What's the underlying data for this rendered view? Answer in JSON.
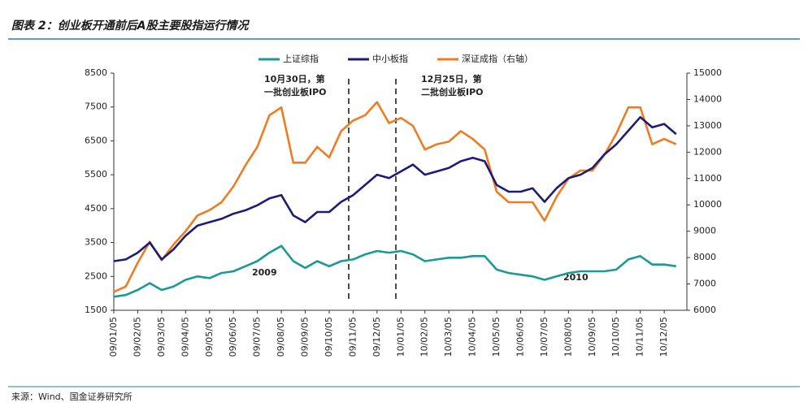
{
  "chart_data": {
    "type": "line",
    "title": "图表 2：创业板开通前后A股主要股指运行情况",
    "source": "来源：Wind、国金证券研究所",
    "categories": [
      "09/01/05",
      null,
      "09/02/05",
      null,
      "09/03/05",
      null,
      "09/04/05",
      null,
      "09/05/05",
      null,
      "09/06/05",
      null,
      "09/07/05",
      null,
      "09/08/05",
      null,
      "09/09/05",
      null,
      "09/10/05",
      null,
      "09/11/05",
      null,
      "09/12/05",
      null,
      "10/01/05",
      null,
      "10/02/05",
      null,
      "10/03/05",
      null,
      "10/04/05",
      null,
      "10/05/05",
      null,
      "10/06/05",
      null,
      "10/07/05",
      null,
      "10/08/05",
      null,
      "10/09/05",
      null,
      "10/10/05",
      null,
      "10/11/05",
      null,
      "10/12/05",
      null
    ],
    "series": [
      {
        "name": "上证综指",
        "color": "#1a9a94",
        "values": [
          1900,
          1950,
          2100,
          2300,
          2100,
          2200,
          2400,
          2500,
          2450,
          2600,
          2650,
          2800,
          2950,
          3200,
          3400,
          2950,
          2750,
          2950,
          2800,
          2950,
          3000,
          3150,
          3250,
          3200,
          3250,
          3150,
          2950,
          3000,
          3050,
          3050,
          3100,
          3100,
          2700,
          2600,
          2550,
          2500,
          2400,
          2500,
          2600,
          2650,
          2650,
          2650,
          2700,
          3000,
          3100,
          2850,
          2850,
          2800
        ]
      },
      {
        "name": "中小板指",
        "color": "#1c1c78",
        "values": [
          2950,
          3000,
          3200,
          3500,
          3000,
          3300,
          3700,
          4000,
          4100,
          4200,
          4350,
          4450,
          4600,
          4800,
          4900,
          4300,
          4100,
          4400,
          4400,
          4700,
          4900,
          5200,
          5500,
          5400,
          5600,
          5800,
          5500,
          5600,
          5700,
          5900,
          6000,
          5900,
          5200,
          5000,
          5000,
          5100,
          4700,
          5100,
          5400,
          5500,
          5700,
          6100,
          6400,
          6800,
          7200,
          6900,
          7000,
          6700
        ]
      },
      {
        "name": "深证成指（右轴）",
        "color": "#f07c22",
        "axis": "y2",
        "values": [
          6700,
          6900,
          7800,
          8600,
          7900,
          8500,
          9000,
          9600,
          9800,
          10100,
          10700,
          11500,
          12200,
          13400,
          13700,
          11600,
          11600,
          12200,
          11800,
          12800,
          13200,
          13400,
          13900,
          13100,
          13300,
          13000,
          12100,
          12300,
          12400,
          12800,
          12500,
          12100,
          10500,
          10100,
          10100,
          10100,
          9400,
          10300,
          11000,
          11300,
          11300,
          11900,
          12700,
          13700,
          13700,
          12300,
          12500,
          12300
        ]
      }
    ],
    "ylim": [
      1500,
      8500
    ],
    "yticks": [
      1500,
      2500,
      3500,
      4500,
      5500,
      6500,
      7500,
      8500
    ],
    "y2lim": [
      6000,
      15000
    ],
    "y2ticks": [
      6000,
      7000,
      8000,
      9000,
      10000,
      11000,
      12000,
      13000,
      14000,
      15000
    ],
    "annotations": [
      {
        "lines": [
          "10月30日，第",
          "一批创业板IPO"
        ]
      },
      {
        "lines": [
          "12月25日，第",
          "二批创业板IPO"
        ]
      },
      {
        "lines": [
          "2009"
        ]
      },
      {
        "lines": [
          "2010"
        ]
      }
    ]
  }
}
